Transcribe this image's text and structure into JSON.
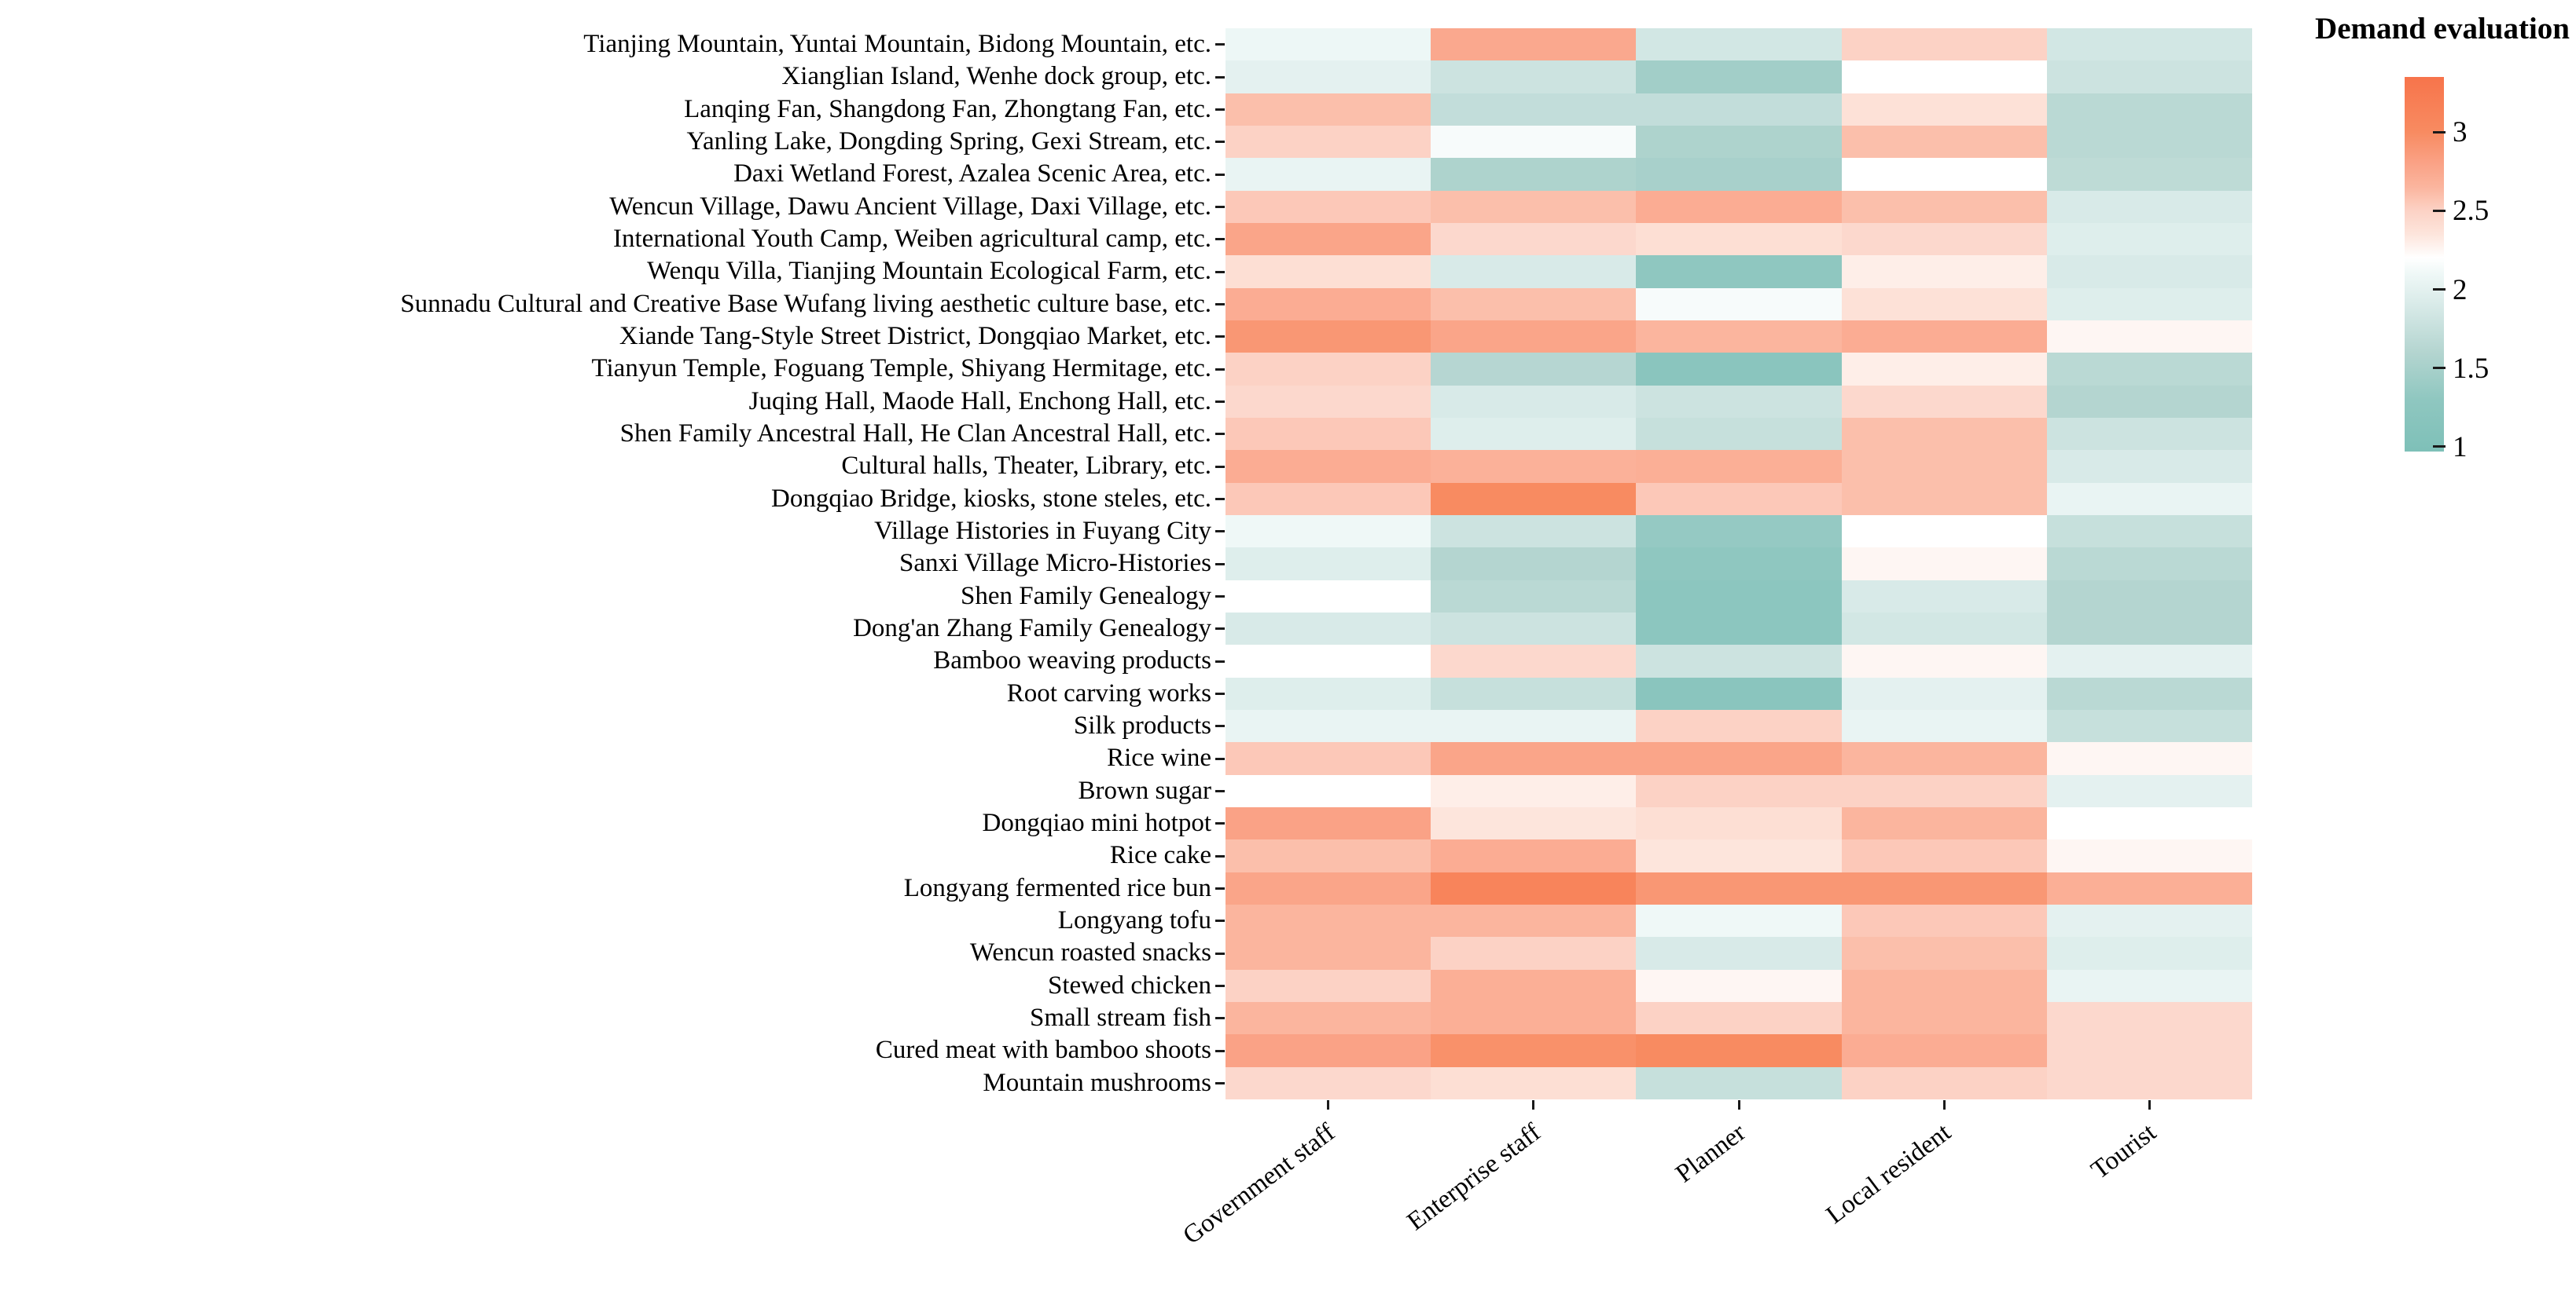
{
  "chart_data": {
    "type": "heatmap",
    "legend_title": "Demand evaluation",
    "columns": [
      "Government staff",
      "Enterprise staff",
      "Planner",
      "Local resident",
      "Tourist"
    ],
    "rows": [
      "Tianjing Mountain, Yuntai Mountain, Bidong Mountain, etc.",
      "Xianglian Island, Wenhe dock group, etc.",
      "Lanqing Fan, Shangdong Fan, Zhongtang Fan, etc.",
      "Yanling Lake, Dongding Spring, Gexi Stream, etc.",
      "Daxi Wetland Forest, Azalea Scenic Area, etc.",
      "Wencun Village, Dawu Ancient Village, Daxi Village, etc.",
      "International Youth Camp, Weiben agricultural camp, etc.",
      "Wenqu Villa, Tianjing Mountain Ecological Farm, etc.",
      "Sunnadu Cultural and Creative Base Wufang living aesthetic culture base, etc.",
      "Xiande Tang-Style Street District, Dongqiao Market, etc.",
      "Tianyun Temple, Foguang Temple, Shiyang Hermitage, etc.",
      "Juqing Hall, Maode Hall, Enchong Hall, etc.",
      "Shen Family Ancestral Hall, He Clan Ancestral Hall, etc.",
      "Cultural halls, Theater, Library, etc.",
      "Dongqiao Bridge, kiosks, stone steles, etc.",
      "Village Histories in Fuyang City",
      "Sanxi Village Micro-Histories",
      "Shen Family Genealogy",
      "Dong'an Zhang Family Genealogy",
      "Bamboo weaving products",
      "Root carving works",
      "Silk products",
      "Rice wine",
      "Brown sugar",
      "Dongqiao mini hotpot",
      "Rice cake",
      "Longyang fermented rice bun",
      "Longyang tofu",
      "Wencun roasted snacks",
      "Stewed chicken",
      "Small stream fish",
      "Cured meat with bamboo shoots",
      "Mountain mushrooms"
    ],
    "values": [
      [
        2.08,
        2.75,
        1.85,
        2.5,
        1.85
      ],
      [
        2.0,
        1.8,
        1.45,
        2.2,
        1.8
      ],
      [
        2.6,
        1.72,
        1.72,
        2.38,
        1.65
      ],
      [
        2.5,
        2.15,
        1.55,
        2.6,
        1.65
      ],
      [
        2.05,
        1.55,
        1.5,
        2.2,
        1.68
      ],
      [
        2.55,
        2.6,
        2.72,
        2.6,
        1.9
      ],
      [
        2.78,
        2.45,
        2.4,
        2.45,
        1.95
      ],
      [
        2.4,
        1.9,
        1.3,
        2.3,
        1.9
      ],
      [
        2.72,
        2.6,
        2.15,
        2.38,
        1.95
      ],
      [
        2.9,
        2.78,
        2.65,
        2.72,
        2.25
      ],
      [
        2.5,
        1.62,
        1.2,
        2.3,
        1.65
      ],
      [
        2.45,
        1.9,
        1.8,
        2.45,
        1.6
      ],
      [
        2.55,
        1.95,
        1.75,
        2.6,
        1.8
      ],
      [
        2.72,
        2.68,
        2.7,
        2.6,
        1.9
      ],
      [
        2.55,
        3.0,
        2.55,
        2.6,
        2.05
      ],
      [
        2.1,
        1.8,
        1.35,
        2.2,
        1.75
      ],
      [
        1.95,
        1.6,
        1.3,
        2.25,
        1.65
      ],
      [
        2.2,
        1.65,
        1.25,
        1.9,
        1.6
      ],
      [
        1.9,
        1.8,
        1.25,
        1.85,
        1.6
      ],
      [
        2.2,
        2.45,
        1.8,
        2.25,
        2.0
      ],
      [
        1.95,
        1.75,
        1.2,
        2.0,
        1.65
      ],
      [
        2.05,
        2.05,
        2.5,
        2.05,
        1.75
      ],
      [
        2.55,
        2.78,
        2.78,
        2.65,
        2.25
      ],
      [
        2.2,
        2.3,
        2.5,
        2.5,
        2.0
      ],
      [
        2.8,
        2.35,
        2.4,
        2.65,
        2.2
      ],
      [
        2.6,
        2.72,
        2.35,
        2.55,
        2.25
      ],
      [
        2.78,
        3.1,
        2.9,
        2.9,
        2.7
      ],
      [
        2.65,
        2.65,
        2.1,
        2.55,
        2.0
      ],
      [
        2.65,
        2.5,
        1.9,
        2.6,
        1.95
      ],
      [
        2.5,
        2.7,
        2.25,
        2.65,
        2.05
      ],
      [
        2.65,
        2.7,
        2.5,
        2.65,
        2.45
      ],
      [
        2.8,
        2.95,
        3.0,
        2.72,
        2.45
      ],
      [
        2.45,
        2.4,
        1.75,
        2.5,
        2.45
      ]
    ],
    "colorbar_ticks": [
      "3",
      "2.5",
      "2",
      "1.5",
      "1"
    ],
    "colorbar_tick_values": [
      3,
      2.5,
      2,
      1.5,
      1
    ],
    "colorbar_domain": [
      0.97,
      3.35
    ],
    "colormap": {
      "stops": [
        {
          "v": 0.97,
          "c": "#7ec0b8"
        },
        {
          "v": 1.3,
          "c": "#8fc7c0"
        },
        {
          "v": 1.6,
          "c": "#b4d5d0"
        },
        {
          "v": 1.9,
          "c": "#d8eae8"
        },
        {
          "v": 2.1,
          "c": "#eff8f7"
        },
        {
          "v": 2.2,
          "c": "#ffffff"
        },
        {
          "v": 2.35,
          "c": "#fde5dc"
        },
        {
          "v": 2.5,
          "c": "#fcd2c5"
        },
        {
          "v": 2.65,
          "c": "#fbb59e"
        },
        {
          "v": 2.8,
          "c": "#faa286"
        },
        {
          "v": 3.0,
          "c": "#f88b61"
        },
        {
          "v": 3.35,
          "c": "#f7744b"
        }
      ]
    },
    "grid": false,
    "legend_position": "right"
  }
}
